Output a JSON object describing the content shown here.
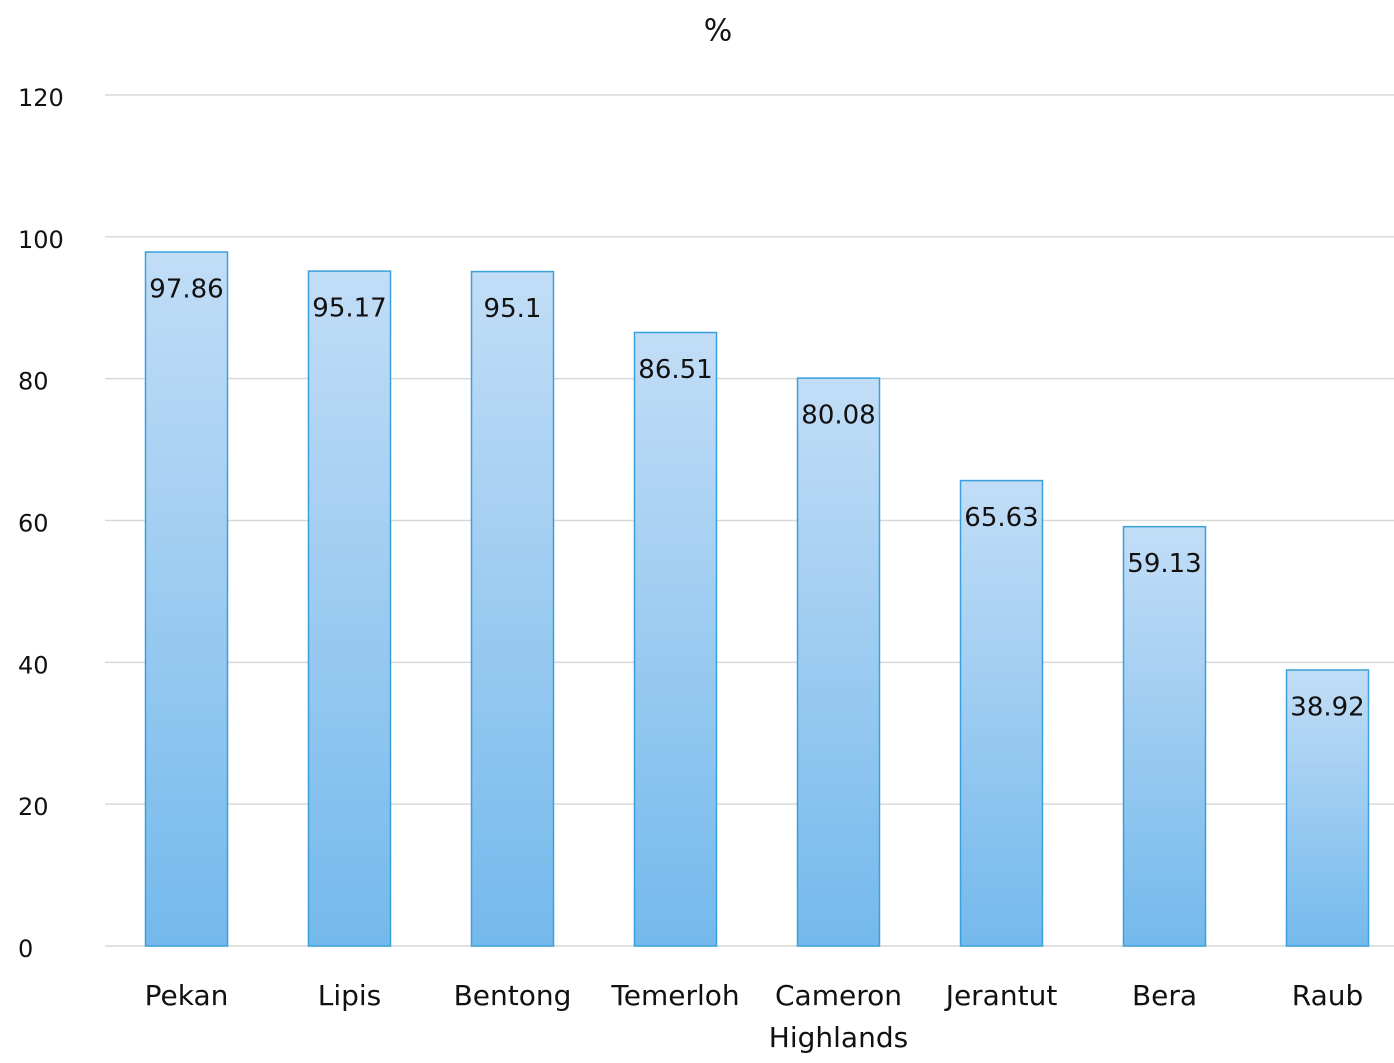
{
  "chart_data": {
    "type": "bar",
    "title": "%",
    "categories": [
      "Pekan",
      "Lipis",
      "Bentong",
      "Temerloh",
      "Cameron Highlands",
      "Jerantut",
      "Bera",
      "Raub"
    ],
    "values": [
      97.86,
      95.17,
      95.1,
      86.51,
      80.08,
      65.63,
      59.13,
      38.92
    ],
    "color": "#74b9ec",
    "ylim": [
      0,
      120
    ],
    "yticks": [
      0,
      20,
      40,
      60,
      80,
      100,
      120
    ],
    "grid": true
  }
}
